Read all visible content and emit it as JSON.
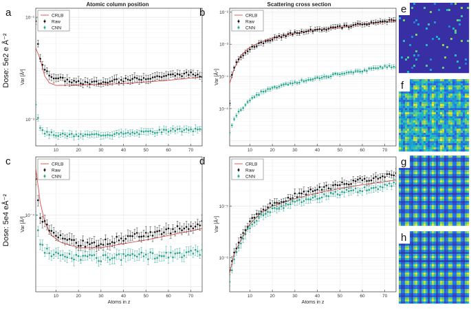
{
  "column_titles": [
    "Atomic column position",
    "Scattering cross section"
  ],
  "row_labels": [
    "Dose: 5e2 e Å⁻²",
    "Dose: 5e4 eÅ⁻²"
  ],
  "image_panel_letters": [
    "e",
    "f",
    "g",
    "h"
  ],
  "colors": {
    "crlb": "#e04545",
    "raw": "#111111",
    "cnn": "#1fa58a"
  },
  "chart_data": [
    {
      "panel": "a",
      "type": "scatter",
      "log_y": true,
      "xlabel": "",
      "ylabel": "Var [Å²]",
      "xlim": [
        1,
        75
      ],
      "ylim": [
        0.0003,
        0.15
      ],
      "xticks": [
        10,
        20,
        30,
        40,
        50,
        60,
        70
      ],
      "yticks": [
        {
          "value": 0.001,
          "label": "10⁻³"
        },
        {
          "value": 0.1,
          "label": "10⁻¹"
        }
      ],
      "legend": [
        "CRLB",
        "Raw",
        "CNN"
      ],
      "series": [
        {
          "name": "CRLB",
          "kind": "line",
          "anchors": [
            [
              1,
              0.025
            ],
            [
              3,
              0.015
            ],
            [
              5,
              0.007
            ],
            [
              7,
              0.0052
            ],
            [
              10,
              0.0046
            ],
            [
              20,
              0.0047
            ],
            [
              40,
              0.005
            ],
            [
              60,
              0.0058
            ],
            [
              75,
              0.0068
            ]
          ]
        },
        {
          "name": "Raw",
          "kind": "points",
          "anchors": [
            [
              1,
              0.085
            ],
            [
              2,
              0.032
            ],
            [
              3,
              0.016
            ],
            [
              5,
              0.009
            ],
            [
              7,
              0.0075
            ],
            [
              10,
              0.0065
            ],
            [
              15,
              0.0058
            ],
            [
              20,
              0.0052
            ],
            [
              30,
              0.0052
            ],
            [
              40,
              0.0058
            ],
            [
              50,
              0.0065
            ],
            [
              60,
              0.0072
            ],
            [
              70,
              0.0078
            ],
            [
              75,
              0.0072
            ]
          ],
          "err": 0.17,
          "jitter": 0.08
        },
        {
          "name": "CNN",
          "kind": "points",
          "anchors": [
            [
              1,
              0.0018
            ],
            [
              2,
              0.0011
            ],
            [
              3,
              0.0007
            ],
            [
              5,
              0.00055
            ],
            [
              10,
              0.0005
            ],
            [
              20,
              0.00048
            ],
            [
              30,
              0.0005
            ],
            [
              40,
              0.00052
            ],
            [
              50,
              0.00055
            ],
            [
              60,
              0.0006
            ],
            [
              75,
              0.00062
            ]
          ],
          "err": 0.14,
          "jitter": 0.07
        }
      ]
    },
    {
      "panel": "b",
      "type": "scatter",
      "log_y": true,
      "xlabel": "",
      "ylabel": "Var [Å⁴]",
      "xlim": [
        1,
        75
      ],
      "ylim": [
        7e-07,
        0.013
      ],
      "xticks": [
        10,
        20,
        30,
        40,
        50,
        60,
        70
      ],
      "yticks": [
        {
          "value": 1e-05,
          "label": "10⁻⁵"
        },
        {
          "value": 0.0001,
          "label": "10⁻⁴"
        },
        {
          "value": 0.001,
          "label": "10⁻³"
        },
        {
          "value": 0.01,
          "label": "10⁻²"
        }
      ],
      "legend": [
        "CRLB",
        "Raw",
        "CNN"
      ],
      "series": [
        {
          "name": "CRLB",
          "kind": "line",
          "anchors": [
            [
              1,
              6e-05
            ],
            [
              3,
              0.00017
            ],
            [
              6,
              0.00045
            ],
            [
              10,
              0.0008
            ],
            [
              15,
              0.0012
            ],
            [
              20,
              0.0015
            ],
            [
              30,
              0.0022
            ],
            [
              40,
              0.0028
            ],
            [
              50,
              0.0033
            ],
            [
              60,
              0.0042
            ],
            [
              75,
              0.0052
            ]
          ]
        },
        {
          "name": "Raw",
          "kind": "points",
          "anchors": [
            [
              1,
              1.5e-05
            ],
            [
              2,
              0.00012
            ],
            [
              3,
              0.0002
            ],
            [
              5,
              0.00035
            ],
            [
              10,
              0.0007
            ],
            [
              15,
              0.0011
            ],
            [
              20,
              0.0015
            ],
            [
              30,
              0.0022
            ],
            [
              40,
              0.0028
            ],
            [
              50,
              0.0034
            ],
            [
              60,
              0.0042
            ],
            [
              70,
              0.005
            ],
            [
              75,
              0.006
            ]
          ],
          "err": 0.16,
          "jitter": 0.1
        },
        {
          "name": "CNN",
          "kind": "points",
          "anchors": [
            [
              1,
              1.8e-06
            ],
            [
              3,
              4.5e-06
            ],
            [
              5,
              8e-06
            ],
            [
              10,
              1.8e-05
            ],
            [
              15,
              3.3e-05
            ],
            [
              20,
              4.5e-05
            ],
            [
              30,
              6.5e-05
            ],
            [
              40,
              9e-05
            ],
            [
              50,
              0.00012
            ],
            [
              60,
              0.00015
            ],
            [
              70,
              0.0002
            ],
            [
              75,
              0.0002
            ]
          ],
          "err": 0.13,
          "jitter": 0.08
        }
      ]
    },
    {
      "panel": "c",
      "type": "scatter",
      "log_y": true,
      "xlabel": "Atoms in z",
      "ylabel": "Var [Å²]",
      "xlim": [
        1,
        75
      ],
      "ylim": [
        8.5e-06,
        0.00065
      ],
      "xticks": [
        10,
        20,
        30,
        40,
        50,
        60,
        70
      ],
      "yticks": [
        {
          "value": 0.0001,
          "label": "10⁻⁴"
        }
      ],
      "legend": [
        "CRLB",
        "Raw",
        "CNN"
      ],
      "series": [
        {
          "name": "CRLB",
          "kind": "line",
          "anchors": [
            [
              1,
              0.00045
            ],
            [
              3,
              0.00015
            ],
            [
              5,
              8e-05
            ],
            [
              8,
              5.2e-05
            ],
            [
              12,
              4.2e-05
            ],
            [
              20,
              3.5e-05
            ],
            [
              30,
              3.5e-05
            ],
            [
              40,
              4e-05
            ],
            [
              50,
              4.5e-05
            ],
            [
              60,
              5.2e-05
            ],
            [
              75,
              6.5e-05
            ]
          ]
        },
        {
          "name": "Raw",
          "kind": "points",
          "anchors": [
            [
              1,
              0.00033
            ],
            [
              2,
              0.00017
            ],
            [
              3,
              0.0001
            ],
            [
              5,
              7.5e-05
            ],
            [
              8,
              5.5e-05
            ],
            [
              12,
              4.8e-05
            ],
            [
              20,
              4e-05
            ],
            [
              30,
              4e-05
            ],
            [
              40,
              4.8e-05
            ],
            [
              50,
              5.5e-05
            ],
            [
              60,
              6e-05
            ],
            [
              70,
              7e-05
            ],
            [
              75,
              7.5e-05
            ]
          ],
          "err": 0.16,
          "jitter": 0.1
        },
        {
          "name": "CNN",
          "kind": "points",
          "anchors": [
            [
              1,
              9e-05
            ],
            [
              2,
              6e-05
            ],
            [
              3,
              4e-05
            ],
            [
              5,
              3.3e-05
            ],
            [
              10,
              2.8e-05
            ],
            [
              20,
              2.6e-05
            ],
            [
              30,
              2.5e-05
            ],
            [
              40,
              2.6e-05
            ],
            [
              50,
              2.7e-05
            ],
            [
              60,
              2.8e-05
            ],
            [
              70,
              2.9e-05
            ],
            [
              75,
              3e-05
            ]
          ],
          "err": 0.16,
          "jitter": 0.12
        }
      ]
    },
    {
      "panel": "d",
      "type": "scatter",
      "log_y": true,
      "xlabel": "Atoms in z",
      "ylabel": "Var [Å⁴]",
      "xlim": [
        1,
        75
      ],
      "ylim": [
        2.2e-07,
        9e-05
      ],
      "xticks": [
        10,
        20,
        30,
        40,
        50,
        60,
        70
      ],
      "yticks": [
        {
          "value": 1e-06,
          "label": "10⁻⁶"
        },
        {
          "value": 1e-05,
          "label": "10⁻⁵"
        }
      ],
      "legend": [
        "CRLB",
        "Raw",
        "CNN"
      ],
      "series": [
        {
          "name": "CRLB",
          "kind": "line",
          "anchors": [
            [
              1,
              5e-07
            ],
            [
              3,
              1.2e-06
            ],
            [
              6,
              2.2e-06
            ],
            [
              10,
              4.5e-06
            ],
            [
              15,
              7.5e-06
            ],
            [
              20,
              1e-05
            ],
            [
              30,
              1.4e-05
            ],
            [
              40,
              1.8e-05
            ],
            [
              50,
              2.2e-05
            ],
            [
              60,
              2.6e-05
            ],
            [
              75,
              3.2e-05
            ]
          ]
        },
        {
          "name": "Raw",
          "kind": "points",
          "anchors": [
            [
              1,
              6e-07
            ],
            [
              2,
              9e-07
            ],
            [
              4,
              1.5e-06
            ],
            [
              6,
              2.5e-06
            ],
            [
              10,
              5e-06
            ],
            [
              15,
              8e-06
            ],
            [
              20,
              1.1e-05
            ],
            [
              30,
              1.6e-05
            ],
            [
              40,
              2.1e-05
            ],
            [
              50,
              2.6e-05
            ],
            [
              60,
              3.2e-05
            ],
            [
              70,
              3.8e-05
            ],
            [
              75,
              4e-05
            ]
          ],
          "err": 0.16,
          "jitter": 0.1
        },
        {
          "name": "CNN",
          "kind": "points",
          "anchors": [
            [
              1,
              3.5e-07
            ],
            [
              2,
              6e-07
            ],
            [
              4,
              1.2e-06
            ],
            [
              6,
              2e-06
            ],
            [
              10,
              4e-06
            ],
            [
              15,
              6.5e-06
            ],
            [
              20,
              8.5e-06
            ],
            [
              30,
              1.2e-05
            ],
            [
              40,
              1.5e-05
            ],
            [
              50,
              1.8e-05
            ],
            [
              60,
              2.1e-05
            ],
            [
              70,
              2.4e-05
            ],
            [
              75,
              2.7e-05
            ]
          ],
          "err": 0.16,
          "jitter": 0.1
        }
      ]
    }
  ]
}
